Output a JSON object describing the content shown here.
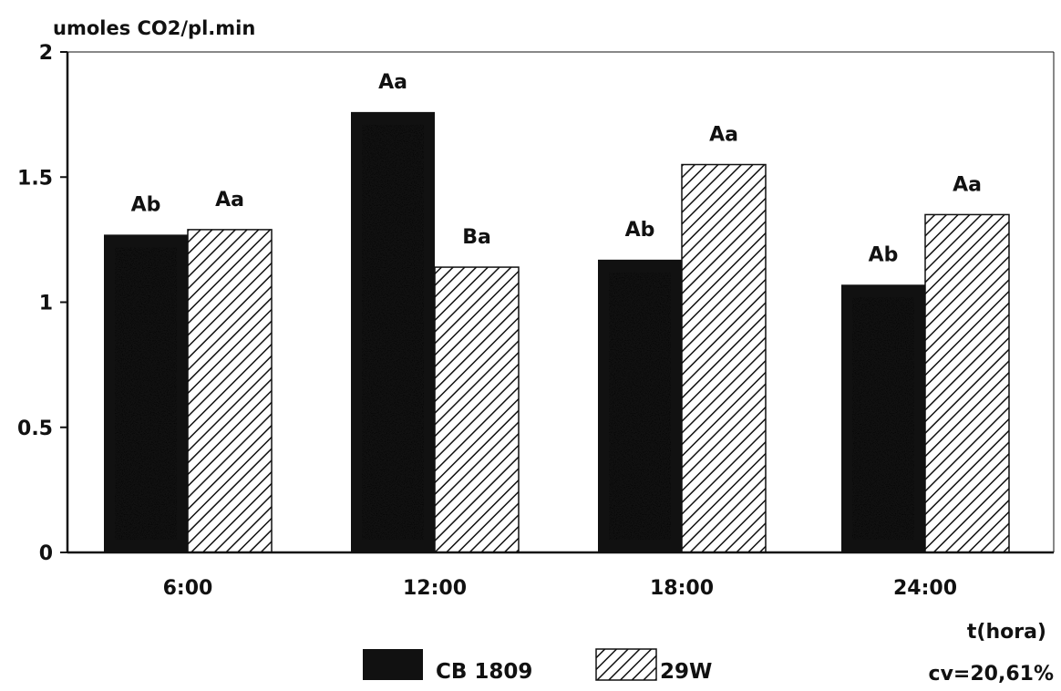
{
  "chart_data": {
    "type": "bar",
    "ylabel": "umoles CO2/pl.min",
    "xlabel": "t(hora)",
    "categories": [
      "6:00",
      "12:00",
      "18:00",
      "24:00"
    ],
    "ylim": [
      0,
      2
    ],
    "yticks": [
      {
        "value": 0,
        "label": "0"
      },
      {
        "value": 0.5,
        "label": "0.5"
      },
      {
        "value": 1,
        "label": "1"
      },
      {
        "value": 1.5,
        "label": "1.5"
      },
      {
        "value": 2,
        "label": "2"
      }
    ],
    "grid": false,
    "legend_position": "bottom",
    "series": [
      {
        "name": "CB 1809",
        "style": "stippled-dark",
        "color": "#111111",
        "values": [
          1.27,
          1.76,
          1.17,
          1.07
        ],
        "labels": [
          "Ab",
          "Aa",
          "Ab",
          "Ab"
        ]
      },
      {
        "name": "29W",
        "style": "diagonal-hatch",
        "color": "#111111",
        "values": [
          1.29,
          1.14,
          1.55,
          1.35
        ],
        "labels": [
          "Aa",
          "Ba",
          "Aa",
          "Aa"
        ]
      }
    ],
    "annotations": [
      "cv=20,61%"
    ]
  }
}
